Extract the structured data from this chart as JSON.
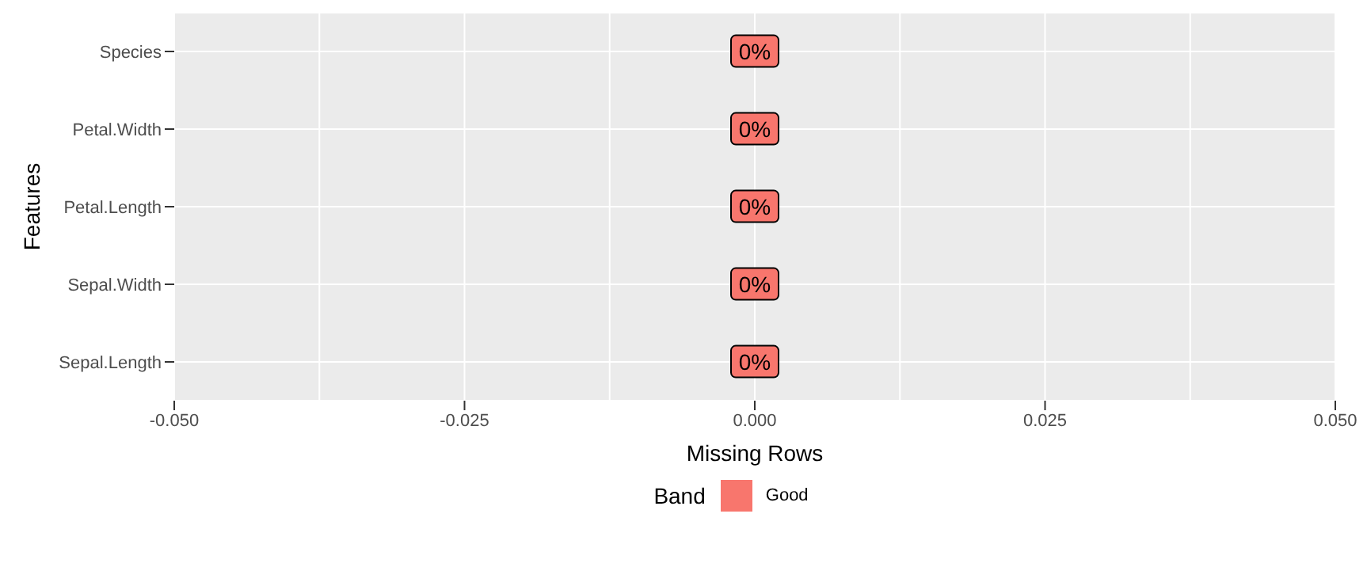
{
  "chart_data": {
    "type": "bar",
    "orientation": "horizontal",
    "xlabel": "Missing Rows",
    "ylabel": "Features",
    "legend_title": "Band",
    "categories": [
      "Species",
      "Petal.Width",
      "Petal.Length",
      "Sepal.Width",
      "Sepal.Length"
    ],
    "series": [
      {
        "name": "Good",
        "color": "#f8766d",
        "values": [
          0,
          0,
          0,
          0,
          0
        ],
        "value_labels": [
          "0%",
          "0%",
          "0%",
          "0%",
          "0%"
        ]
      }
    ],
    "xlim": [
      -0.05,
      0.05
    ],
    "xticks": [
      {
        "value": -0.05,
        "label": "-0.050"
      },
      {
        "value": -0.025,
        "label": "-0.025"
      },
      {
        "value": 0,
        "label": "0.000"
      },
      {
        "value": 0.025,
        "label": "0.025"
      },
      {
        "value": 0.05,
        "label": "0.050"
      }
    ],
    "grid": true,
    "legend": "bottom"
  }
}
